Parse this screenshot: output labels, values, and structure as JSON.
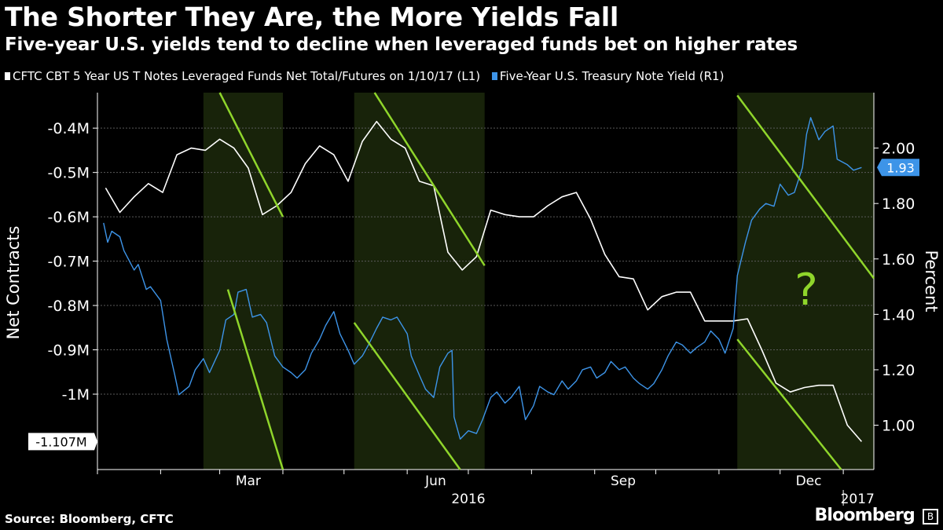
{
  "header": {
    "title": "The Shorter They Are, the More Yields Fall",
    "subtitle": "Five-year U.S. yields tend to decline when leveraged funds bet on higher rates"
  },
  "footer": {
    "source": "Source: Bloomberg, CFTC",
    "brand": "Bloomberg",
    "brand_mark": "B"
  },
  "chart_data": {
    "type": "line",
    "legend": "top-left",
    "grid": true,
    "series": [
      {
        "name": "CFTC CBT 5 Year US T Notes Leveraged Funds Net Total/Futures on 1/10/17 (L1)",
        "axis": "left",
        "color": "#ffffff",
        "last_value_label": "-1.107M",
        "points": [
          [
            "2016-01-05",
            -0.535
          ],
          [
            "2016-01-12",
            -0.59
          ],
          [
            "2016-01-19",
            -0.555
          ],
          [
            "2016-01-26",
            -0.525
          ],
          [
            "2016-02-02",
            -0.545
          ],
          [
            "2016-02-09",
            -0.46
          ],
          [
            "2016-02-16",
            -0.445
          ],
          [
            "2016-02-23",
            -0.45
          ],
          [
            "2016-03-01",
            -0.425
          ],
          [
            "2016-03-08",
            -0.445
          ],
          [
            "2016-03-15",
            -0.49
          ],
          [
            "2016-03-22",
            -0.595
          ],
          [
            "2016-03-29",
            -0.575
          ],
          [
            "2016-04-05",
            -0.545
          ],
          [
            "2016-04-12",
            -0.48
          ],
          [
            "2016-04-19",
            -0.44
          ],
          [
            "2016-04-26",
            -0.46
          ],
          [
            "2016-05-03",
            -0.52
          ],
          [
            "2016-05-10",
            -0.43
          ],
          [
            "2016-05-17",
            -0.385
          ],
          [
            "2016-05-24",
            -0.425
          ],
          [
            "2016-05-31",
            -0.445
          ],
          [
            "2016-06-07",
            -0.52
          ],
          [
            "2016-06-14",
            -0.53
          ],
          [
            "2016-06-21",
            -0.68
          ],
          [
            "2016-06-28",
            -0.72
          ],
          [
            "2016-07-05",
            -0.69
          ],
          [
            "2016-07-12",
            -0.585
          ],
          [
            "2016-07-19",
            -0.595
          ],
          [
            "2016-07-26",
            -0.6
          ],
          [
            "2016-08-02",
            -0.6
          ],
          [
            "2016-08-09",
            -0.575
          ],
          [
            "2016-08-16",
            -0.555
          ],
          [
            "2016-08-23",
            -0.545
          ],
          [
            "2016-08-30",
            -0.605
          ],
          [
            "2016-09-06",
            -0.685
          ],
          [
            "2016-09-13",
            -0.735
          ],
          [
            "2016-09-20",
            -0.74
          ],
          [
            "2016-09-27",
            -0.81
          ],
          [
            "2016-10-04",
            -0.78
          ],
          [
            "2016-10-11",
            -0.77
          ],
          [
            "2016-10-18",
            -0.77
          ],
          [
            "2016-10-25",
            -0.835
          ],
          [
            "2016-11-01",
            -0.835
          ],
          [
            "2016-11-08",
            -0.835
          ],
          [
            "2016-11-15",
            -0.83
          ],
          [
            "2016-11-22",
            -0.9
          ],
          [
            "2016-11-29",
            -0.975
          ],
          [
            "2016-12-06",
            -0.995
          ],
          [
            "2016-12-13",
            -0.985
          ],
          [
            "2016-12-20",
            -0.98
          ],
          [
            "2016-12-27",
            -0.98
          ],
          [
            "2017-01-03",
            -1.07
          ],
          [
            "2017-01-10",
            -1.107
          ]
        ]
      },
      {
        "name": "Five-Year U.S. Treasury Note Yield (R1)",
        "axis": "right",
        "color": "#3d94e8",
        "last_value_label": "1.93",
        "points": [
          [
            "2016-01-04",
            1.73
          ],
          [
            "2016-01-06",
            1.66
          ],
          [
            "2016-01-08",
            1.7
          ],
          [
            "2016-01-12",
            1.68
          ],
          [
            "2016-01-14",
            1.63
          ],
          [
            "2016-01-19",
            1.56
          ],
          [
            "2016-01-21",
            1.58
          ],
          [
            "2016-01-25",
            1.49
          ],
          [
            "2016-01-27",
            1.5
          ],
          [
            "2016-02-01",
            1.45
          ],
          [
            "2016-02-04",
            1.31
          ],
          [
            "2016-02-08",
            1.18
          ],
          [
            "2016-02-10",
            1.11
          ],
          [
            "2016-02-15",
            1.14
          ],
          [
            "2016-02-18",
            1.2
          ],
          [
            "2016-02-22",
            1.24
          ],
          [
            "2016-02-25",
            1.19
          ],
          [
            "2016-03-01",
            1.27
          ],
          [
            "2016-03-04",
            1.38
          ],
          [
            "2016-03-08",
            1.4
          ],
          [
            "2016-03-10",
            1.48
          ],
          [
            "2016-03-14",
            1.49
          ],
          [
            "2016-03-17",
            1.39
          ],
          [
            "2016-03-21",
            1.4
          ],
          [
            "2016-03-24",
            1.37
          ],
          [
            "2016-03-28",
            1.25
          ],
          [
            "2016-04-01",
            1.21
          ],
          [
            "2016-04-05",
            1.19
          ],
          [
            "2016-04-08",
            1.17
          ],
          [
            "2016-04-12",
            1.2
          ],
          [
            "2016-04-15",
            1.26
          ],
          [
            "2016-04-19",
            1.31
          ],
          [
            "2016-04-22",
            1.36
          ],
          [
            "2016-04-26",
            1.41
          ],
          [
            "2016-04-29",
            1.33
          ],
          [
            "2016-05-03",
            1.27
          ],
          [
            "2016-05-06",
            1.22
          ],
          [
            "2016-05-10",
            1.25
          ],
          [
            "2016-05-13",
            1.29
          ],
          [
            "2016-05-17",
            1.35
          ],
          [
            "2016-05-20",
            1.39
          ],
          [
            "2016-05-24",
            1.38
          ],
          [
            "2016-05-27",
            1.39
          ],
          [
            "2016-06-01",
            1.33
          ],
          [
            "2016-06-03",
            1.25
          ],
          [
            "2016-06-07",
            1.18
          ],
          [
            "2016-06-10",
            1.13
          ],
          [
            "2016-06-14",
            1.1
          ],
          [
            "2016-06-17",
            1.21
          ],
          [
            "2016-06-21",
            1.26
          ],
          [
            "2016-06-23",
            1.27
          ],
          [
            "2016-06-24",
            1.03
          ],
          [
            "2016-06-27",
            0.95
          ],
          [
            "2016-07-01",
            0.98
          ],
          [
            "2016-07-05",
            0.97
          ],
          [
            "2016-07-08",
            1.02
          ],
          [
            "2016-07-12",
            1.1
          ],
          [
            "2016-07-15",
            1.12
          ],
          [
            "2016-07-19",
            1.08
          ],
          [
            "2016-07-22",
            1.1
          ],
          [
            "2016-07-26",
            1.14
          ],
          [
            "2016-07-29",
            1.02
          ],
          [
            "2016-08-02",
            1.07
          ],
          [
            "2016-08-05",
            1.14
          ],
          [
            "2016-08-09",
            1.12
          ],
          [
            "2016-08-12",
            1.11
          ],
          [
            "2016-08-16",
            1.16
          ],
          [
            "2016-08-19",
            1.13
          ],
          [
            "2016-08-23",
            1.16
          ],
          [
            "2016-08-26",
            1.2
          ],
          [
            "2016-08-30",
            1.21
          ],
          [
            "2016-09-02",
            1.17
          ],
          [
            "2016-09-06",
            1.19
          ],
          [
            "2016-09-09",
            1.23
          ],
          [
            "2016-09-13",
            1.2
          ],
          [
            "2016-09-16",
            1.21
          ],
          [
            "2016-09-20",
            1.17
          ],
          [
            "2016-09-23",
            1.15
          ],
          [
            "2016-09-27",
            1.13
          ],
          [
            "2016-09-30",
            1.15
          ],
          [
            "2016-10-04",
            1.2
          ],
          [
            "2016-10-07",
            1.25
          ],
          [
            "2016-10-11",
            1.3
          ],
          [
            "2016-10-14",
            1.29
          ],
          [
            "2016-10-18",
            1.26
          ],
          [
            "2016-10-21",
            1.28
          ],
          [
            "2016-10-25",
            1.3
          ],
          [
            "2016-10-28",
            1.34
          ],
          [
            "2016-11-01",
            1.31
          ],
          [
            "2016-11-04",
            1.26
          ],
          [
            "2016-11-08",
            1.35
          ],
          [
            "2016-11-10",
            1.54
          ],
          [
            "2016-11-14",
            1.66
          ],
          [
            "2016-11-17",
            1.74
          ],
          [
            "2016-11-21",
            1.78
          ],
          [
            "2016-11-24",
            1.8
          ],
          [
            "2016-11-28",
            1.79
          ],
          [
            "2016-12-01",
            1.87
          ],
          [
            "2016-12-05",
            1.83
          ],
          [
            "2016-12-08",
            1.84
          ],
          [
            "2016-12-12",
            1.93
          ],
          [
            "2016-12-14",
            2.05
          ],
          [
            "2016-12-16",
            2.11
          ],
          [
            "2016-12-20",
            2.03
          ],
          [
            "2016-12-23",
            2.06
          ],
          [
            "2016-12-27",
            2.08
          ],
          [
            "2016-12-29",
            1.96
          ],
          [
            "2017-01-03",
            1.94
          ],
          [
            "2017-01-06",
            1.92
          ],
          [
            "2017-01-10",
            1.93
          ]
        ]
      }
    ],
    "left_axis": {
      "label": "Net Contracts",
      "ticks": [
        "-0.4M",
        "-0.5M",
        "-0.6M",
        "-0.7M",
        "-0.8M",
        "-0.9M",
        "-1M"
      ],
      "tick_values": [
        -0.4,
        -0.5,
        -0.6,
        -0.7,
        -0.8,
        -0.9,
        -1.0
      ],
      "range": [
        -1.17,
        -0.32
      ]
    },
    "right_axis": {
      "label": "Percent",
      "ticks": [
        "2.00",
        "1.80",
        "1.60",
        "1.40",
        "1.20",
        "1.00"
      ],
      "tick_values": [
        2.0,
        1.8,
        1.6,
        1.4,
        1.2,
        1.0
      ],
      "range": [
        0.84,
        2.2
      ]
    },
    "x_axis": {
      "range": [
        "2016-01-01",
        "2017-01-16"
      ],
      "month_labels": [
        {
          "label": "Mar",
          "date": "2016-03-01"
        },
        {
          "label": "Jun",
          "date": "2016-06-01"
        },
        {
          "label": "Sep",
          "date": "2016-09-01"
        },
        {
          "label": "Dec",
          "date": "2016-12-01"
        }
      ],
      "year_labels": [
        {
          "label": "2016",
          "date": "2016-07-01"
        },
        {
          "label": "2017",
          "date": "2017-01-08"
        }
      ]
    },
    "shaded_periods": [
      {
        "start": "2016-02-22",
        "end": "2016-04-01"
      },
      {
        "start": "2016-05-06",
        "end": "2016-07-09"
      },
      {
        "start": "2016-11-10",
        "end": "2017-01-16"
      }
    ],
    "trend_lines": [
      {
        "axis": "left",
        "from": [
          "2016-03-01",
          -0.32
        ],
        "to": [
          "2016-04-01",
          -0.6
        ]
      },
      {
        "axis": "left",
        "from": [
          "2016-05-16",
          -0.32
        ],
        "to": [
          "2016-07-09",
          -0.71
        ]
      },
      {
        "axis": "right",
        "from": [
          "2016-03-05",
          1.49
        ],
        "to": [
          "2016-04-01",
          0.84
        ]
      },
      {
        "axis": "right",
        "from": [
          "2016-05-06",
          1.37
        ],
        "to": [
          "2016-06-27",
          0.84
        ]
      },
      {
        "axis": "right",
        "from": [
          "2016-11-10",
          2.19
        ],
        "to": [
          "2017-01-16",
          1.53
        ]
      },
      {
        "axis": "right",
        "from": [
          "2016-11-10",
          1.31
        ],
        "to": [
          "2016-12-31",
          0.84
        ]
      }
    ],
    "annotation": "?"
  }
}
